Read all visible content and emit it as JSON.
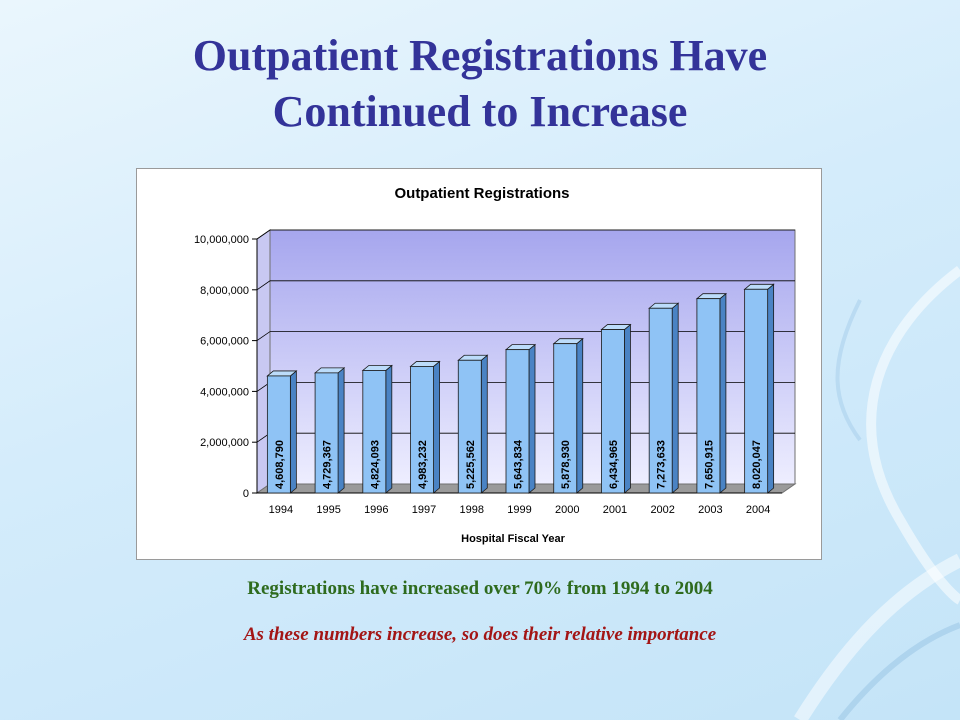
{
  "slide": {
    "title_line1": "Outpatient Registrations Have",
    "title_line2": "Continued to Increase",
    "caption1": "Registrations have increased over 70% from 1994 to 2004",
    "caption2": "As these numbers increase, so does their relative importance"
  },
  "colors": {
    "title": "#333399",
    "caption1": "#2e6b1e",
    "caption2": "#a31515",
    "bar_front": "#8fc3f5",
    "bar_side": "#4a83c4",
    "bar_top": "#bcdcfa",
    "plot_wall_top": "#a6a6ee",
    "plot_wall_bottom": "#eeeeff"
  },
  "chart_data": {
    "type": "bar",
    "title": "Outpatient Registrations",
    "xlabel": "Hospital Fiscal Year",
    "ylabel": "",
    "categories": [
      "1994",
      "1995",
      "1996",
      "1997",
      "1998",
      "1999",
      "2000",
      "2001",
      "2002",
      "2003",
      "2004"
    ],
    "values": [
      4608790,
      4729367,
      4824093,
      4983232,
      5225562,
      5643834,
      5878930,
      6434965,
      7273633,
      7650915,
      8020047
    ],
    "value_labels": [
      "4,608,790",
      "4,729,367",
      "4,824,093",
      "4,983,232",
      "5,225,562",
      "5,643,834",
      "5,878,930",
      "6,434,965",
      "7,273,633",
      "7,650,915",
      "8,020,047"
    ],
    "ylim": [
      0,
      10000000
    ],
    "yticks": [
      0,
      2000000,
      4000000,
      6000000,
      8000000,
      10000000
    ],
    "ytick_labels": [
      "0",
      "2,000,000",
      "4,000,000",
      "6,000,000",
      "8,000,000",
      "10,000,000"
    ],
    "grid": true,
    "legend": "none",
    "style": "3d"
  }
}
